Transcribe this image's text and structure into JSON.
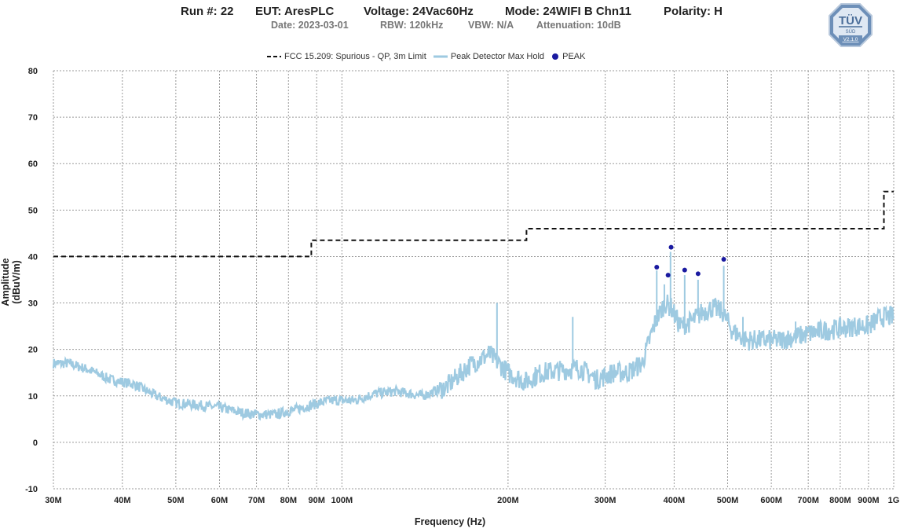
{
  "header": {
    "run": "Run #: 22",
    "eut": "EUT: AresPLC",
    "voltage": "Voltage: 24Vac60Hz",
    "mode": "Mode: 24WIFI B Chn11",
    "polarity": "Polarity: H",
    "date": "Date: 2023-03-01",
    "rbw": "RBW: 120kHz",
    "vbw": "VBW: N/A",
    "attenuation": "Attenuation: 10dB"
  },
  "logo": {
    "text": "TÜV",
    "sub": "SÜD",
    "version": "V2.1.0"
  },
  "colors": {
    "limit": "#111111",
    "trace": "#9ecae1",
    "peak": "#1a1aa0",
    "grid": "#9a9a9a"
  },
  "chart_data": {
    "type": "line",
    "xlabel": "Frequency (Hz)",
    "ylabel": "Amplitude (dBuV/m)",
    "x_scale": "log",
    "xlim": [
      30000000,
      1000000000
    ],
    "ylim": [
      -10,
      80
    ],
    "grid": true,
    "legend_position": "top",
    "x_ticks": [
      {
        "value": 30000000,
        "label": "30M"
      },
      {
        "value": 40000000,
        "label": "40M"
      },
      {
        "value": 50000000,
        "label": "50M"
      },
      {
        "value": 60000000,
        "label": "60M"
      },
      {
        "value": 70000000,
        "label": "70M"
      },
      {
        "value": 80000000,
        "label": "80M"
      },
      {
        "value": 90000000,
        "label": "90M"
      },
      {
        "value": 100000000,
        "label": "100M"
      },
      {
        "value": 200000000,
        "label": "200M"
      },
      {
        "value": 300000000,
        "label": "300M"
      },
      {
        "value": 400000000,
        "label": "400M"
      },
      {
        "value": 500000000,
        "label": "500M"
      },
      {
        "value": 600000000,
        "label": "600M"
      },
      {
        "value": 700000000,
        "label": "700M"
      },
      {
        "value": 800000000,
        "label": "800M"
      },
      {
        "value": 900000000,
        "label": "900M"
      },
      {
        "value": 1000000000,
        "label": "1G"
      }
    ],
    "y_ticks": [
      -10,
      0,
      10,
      20,
      30,
      40,
      50,
      60,
      70,
      80
    ],
    "series": [
      {
        "name": "FCC 15.209: Spurious - QP, 3m Limit",
        "style": "dashed",
        "points": [
          [
            30000000,
            40.0
          ],
          [
            88000000,
            40.0
          ],
          [
            88000000,
            43.5
          ],
          [
            216000000,
            43.5
          ],
          [
            216000000,
            46.0
          ],
          [
            960000000,
            46.0
          ],
          [
            960000000,
            54.0
          ],
          [
            1000000000,
            54.0
          ]
        ]
      },
      {
        "name": "Peak Detector Max Hold",
        "style": "line",
        "points": [
          [
            30000000,
            17
          ],
          [
            32000000,
            17
          ],
          [
            35000000,
            15.5
          ],
          [
            38000000,
            13.5
          ],
          [
            42000000,
            12.5
          ],
          [
            46000000,
            10
          ],
          [
            50000000,
            8.5
          ],
          [
            55000000,
            8
          ],
          [
            60000000,
            7.5
          ],
          [
            65000000,
            6.5
          ],
          [
            70000000,
            6
          ],
          [
            76000000,
            6
          ],
          [
            82000000,
            7
          ],
          [
            88000000,
            8
          ],
          [
            95000000,
            9
          ],
          [
            105000000,
            9
          ],
          [
            115000000,
            10.5
          ],
          [
            125000000,
            11
          ],
          [
            140000000,
            10
          ],
          [
            155000000,
            12
          ],
          [
            170000000,
            16.5
          ],
          [
            185000000,
            19
          ],
          [
            200000000,
            15
          ],
          [
            215000000,
            13
          ],
          [
            230000000,
            15
          ],
          [
            250000000,
            15.5
          ],
          [
            270000000,
            16
          ],
          [
            290000000,
            13.5
          ],
          [
            310000000,
            15
          ],
          [
            330000000,
            15
          ],
          [
            350000000,
            17
          ],
          [
            370000000,
            26
          ],
          [
            385000000,
            30
          ],
          [
            395000000,
            29
          ],
          [
            410000000,
            25
          ],
          [
            430000000,
            26
          ],
          [
            450000000,
            28
          ],
          [
            470000000,
            29
          ],
          [
            490000000,
            28
          ],
          [
            510000000,
            24
          ],
          [
            540000000,
            22
          ],
          [
            580000000,
            22
          ],
          [
            620000000,
            22
          ],
          [
            680000000,
            23
          ],
          [
            740000000,
            24
          ],
          [
            800000000,
            24.5
          ],
          [
            850000000,
            25
          ],
          [
            900000000,
            25
          ],
          [
            950000000,
            27
          ],
          [
            1000000000,
            27
          ]
        ],
        "spikes": [
          [
            191000000,
            30
          ],
          [
            262000000,
            27
          ],
          [
            372000000,
            37
          ],
          [
            384000000,
            34
          ],
          [
            394000000,
            41
          ],
          [
            418000000,
            36
          ],
          [
            442000000,
            35
          ],
          [
            492000000,
            38
          ],
          [
            533000000,
            27
          ],
          [
            664000000,
            26
          ],
          [
            960000000,
            28
          ]
        ]
      },
      {
        "name": "PEAK",
        "style": "markers",
        "points": [
          [
            372000000,
            37.7
          ],
          [
            390000000,
            36.0
          ],
          [
            395000000,
            42.0
          ],
          [
            418000000,
            37.1
          ],
          [
            442000000,
            36.3
          ],
          [
            492000000,
            39.4
          ]
        ]
      }
    ]
  }
}
